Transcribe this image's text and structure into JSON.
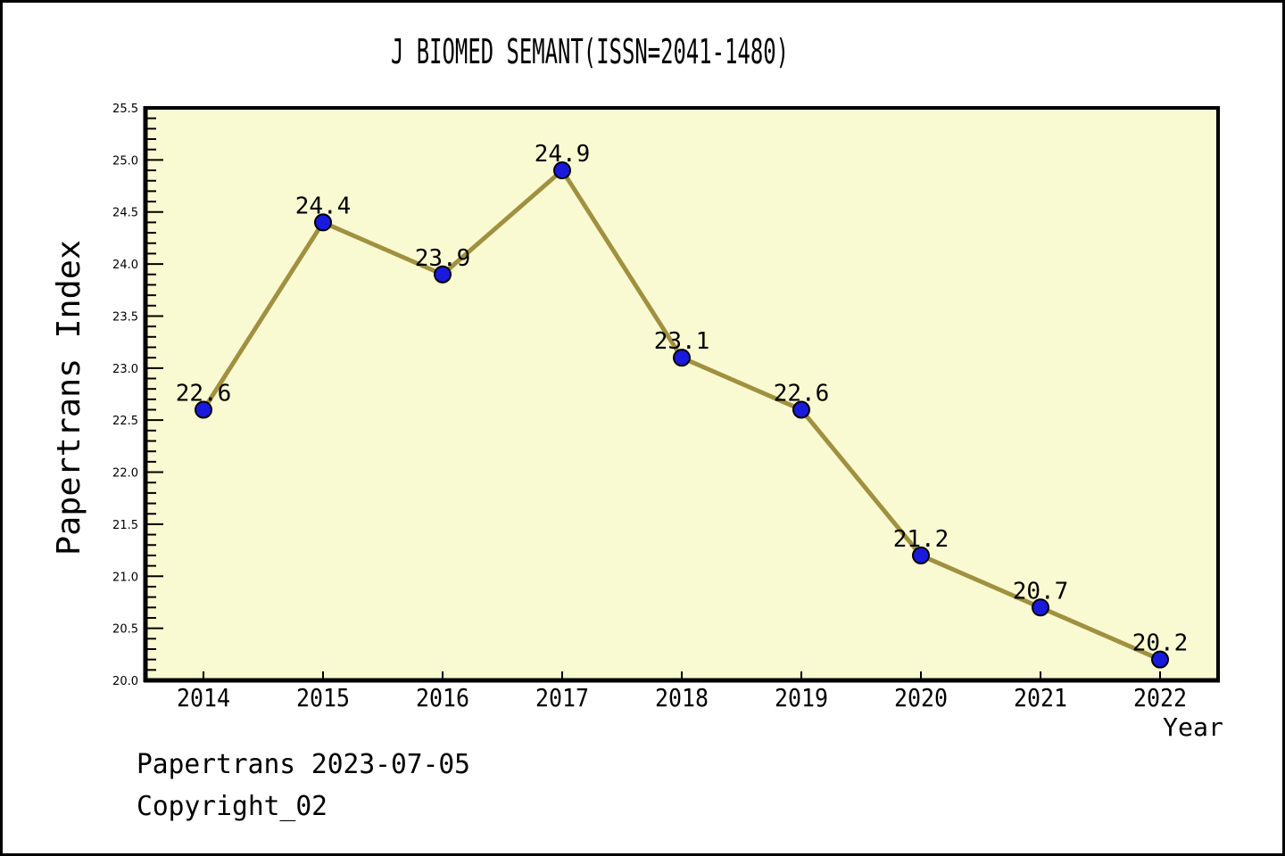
{
  "page": {
    "footer_line1": "Papertrans 2023-07-05",
    "footer_line2": "Copyright_02"
  },
  "chart_data": {
    "type": "line",
    "title": "J BIOMED SEMANT(ISSN=2041-1480)",
    "xlabel": "Year",
    "ylabel": "Papertrans Index",
    "categories": [
      "2014",
      "2015",
      "2016",
      "2017",
      "2018",
      "2019",
      "2020",
      "2021",
      "2022"
    ],
    "series": [
      {
        "name": "Papertrans Index",
        "values": [
          22.6,
          24.4,
          23.9,
          24.9,
          23.1,
          22.6,
          21.2,
          20.7,
          20.2
        ]
      }
    ],
    "point_labels": [
      "22.6",
      "24.4",
      "23.9",
      "24.9",
      "23.1",
      "22.6",
      "21.2",
      "20.7",
      "20.2"
    ],
    "ylim": [
      20.0,
      25.5
    ],
    "ytick_step": 0.5,
    "yminor_step": 0.1,
    "grid": false,
    "legend": "none",
    "colors": {
      "line": "#A09140",
      "marker_fill": "#1A1ADC",
      "marker_edge": "#000000",
      "plot_bg": "#FAFAD2",
      "page_bg": "#FFFFFF",
      "axis": "#000000",
      "text": "#000000"
    }
  }
}
